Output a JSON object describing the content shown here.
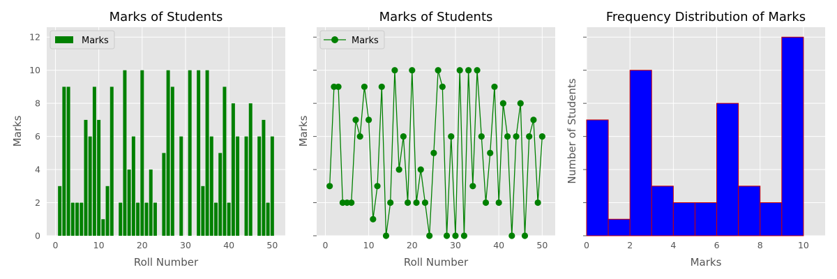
{
  "colors": {
    "panel_bg": "#e5e5e5",
    "grid": "#ffffff",
    "bar": "#008000",
    "line": "#008000",
    "hist_fill": "#0000ff",
    "hist_edge": "#cc0000",
    "text": "#555555"
  },
  "chart_data": [
    {
      "type": "bar",
      "title": "Marks of Students",
      "xlabel": "Roll Number",
      "ylabel": "Marks",
      "legend": {
        "label": "Marks",
        "placement": "top-left"
      },
      "grid": true,
      "xlim": [
        -2,
        53
      ],
      "ylim": [
        0,
        12.6
      ],
      "xticks": [
        0,
        10,
        20,
        30,
        40,
        50
      ],
      "yticks": [
        0,
        2,
        4,
        6,
        8,
        10,
        12
      ],
      "series": [
        {
          "name": "Marks",
          "x": [
            1,
            2,
            3,
            4,
            5,
            6,
            7,
            8,
            9,
            10,
            11,
            12,
            13,
            14,
            15,
            16,
            17,
            18,
            19,
            20,
            21,
            22,
            23,
            24,
            25,
            26,
            27,
            28,
            29,
            30,
            31,
            32,
            33,
            34,
            35,
            36,
            37,
            38,
            39,
            40,
            41,
            42,
            43,
            44,
            45,
            46,
            47,
            48,
            49,
            50
          ],
          "values": [
            3,
            9,
            9,
            2,
            2,
            2,
            7,
            6,
            9,
            7,
            1,
            3,
            9,
            0,
            2,
            10,
            4,
            6,
            2,
            10,
            2,
            4,
            2,
            0,
            5,
            10,
            9,
            0,
            6,
            0,
            10,
            0,
            10,
            3,
            10,
            6,
            2,
            5,
            9,
            2,
            8,
            6,
            0,
            6,
            8,
            0,
            6,
            7,
            2,
            6
          ]
        }
      ]
    },
    {
      "type": "line",
      "title": "Marks of Students",
      "xlabel": "Roll Number",
      "ylabel": "Marks",
      "legend": {
        "label": "Marks",
        "placement": "top-left"
      },
      "grid": true,
      "xlim": [
        -2,
        53
      ],
      "ylim": [
        0,
        12.6
      ],
      "xticks": [
        0,
        10,
        20,
        30,
        40,
        50
      ],
      "yticks": [
        0,
        2,
        4,
        6,
        8,
        10,
        12
      ],
      "series": [
        {
          "name": "Marks",
          "x": [
            1,
            2,
            3,
            4,
            5,
            6,
            7,
            8,
            9,
            10,
            11,
            12,
            13,
            14,
            15,
            16,
            17,
            18,
            19,
            20,
            21,
            22,
            23,
            24,
            25,
            26,
            27,
            28,
            29,
            30,
            31,
            32,
            33,
            34,
            35,
            36,
            37,
            38,
            39,
            40,
            41,
            42,
            43,
            44,
            45,
            46,
            47,
            48,
            49,
            50
          ],
          "values": [
            3,
            9,
            9,
            2,
            2,
            2,
            7,
            6,
            9,
            7,
            1,
            3,
            9,
            0,
            2,
            10,
            4,
            6,
            2,
            10,
            2,
            4,
            2,
            0,
            5,
            10,
            9,
            0,
            6,
            0,
            10,
            0,
            10,
            3,
            10,
            6,
            2,
            5,
            9,
            2,
            8,
            6,
            0,
            6,
            8,
            0,
            6,
            7,
            2,
            6
          ]
        }
      ]
    },
    {
      "type": "bar",
      "title": "Frequency Distribution of Marks",
      "xlabel": "Marks",
      "ylabel": "Number of Students",
      "grid": true,
      "xlim": [
        0,
        11
      ],
      "ylim": [
        0,
        12.6
      ],
      "xticks": [
        0,
        2,
        4,
        6,
        8,
        10
      ],
      "yticks": [
        0,
        2,
        4,
        6,
        8,
        10,
        12
      ],
      "bin_edges": [
        0,
        1,
        2,
        3,
        4,
        5,
        6,
        7,
        8,
        9,
        10
      ],
      "counts": [
        7,
        1,
        10,
        3,
        2,
        2,
        8,
        3,
        2,
        12
      ]
    }
  ]
}
